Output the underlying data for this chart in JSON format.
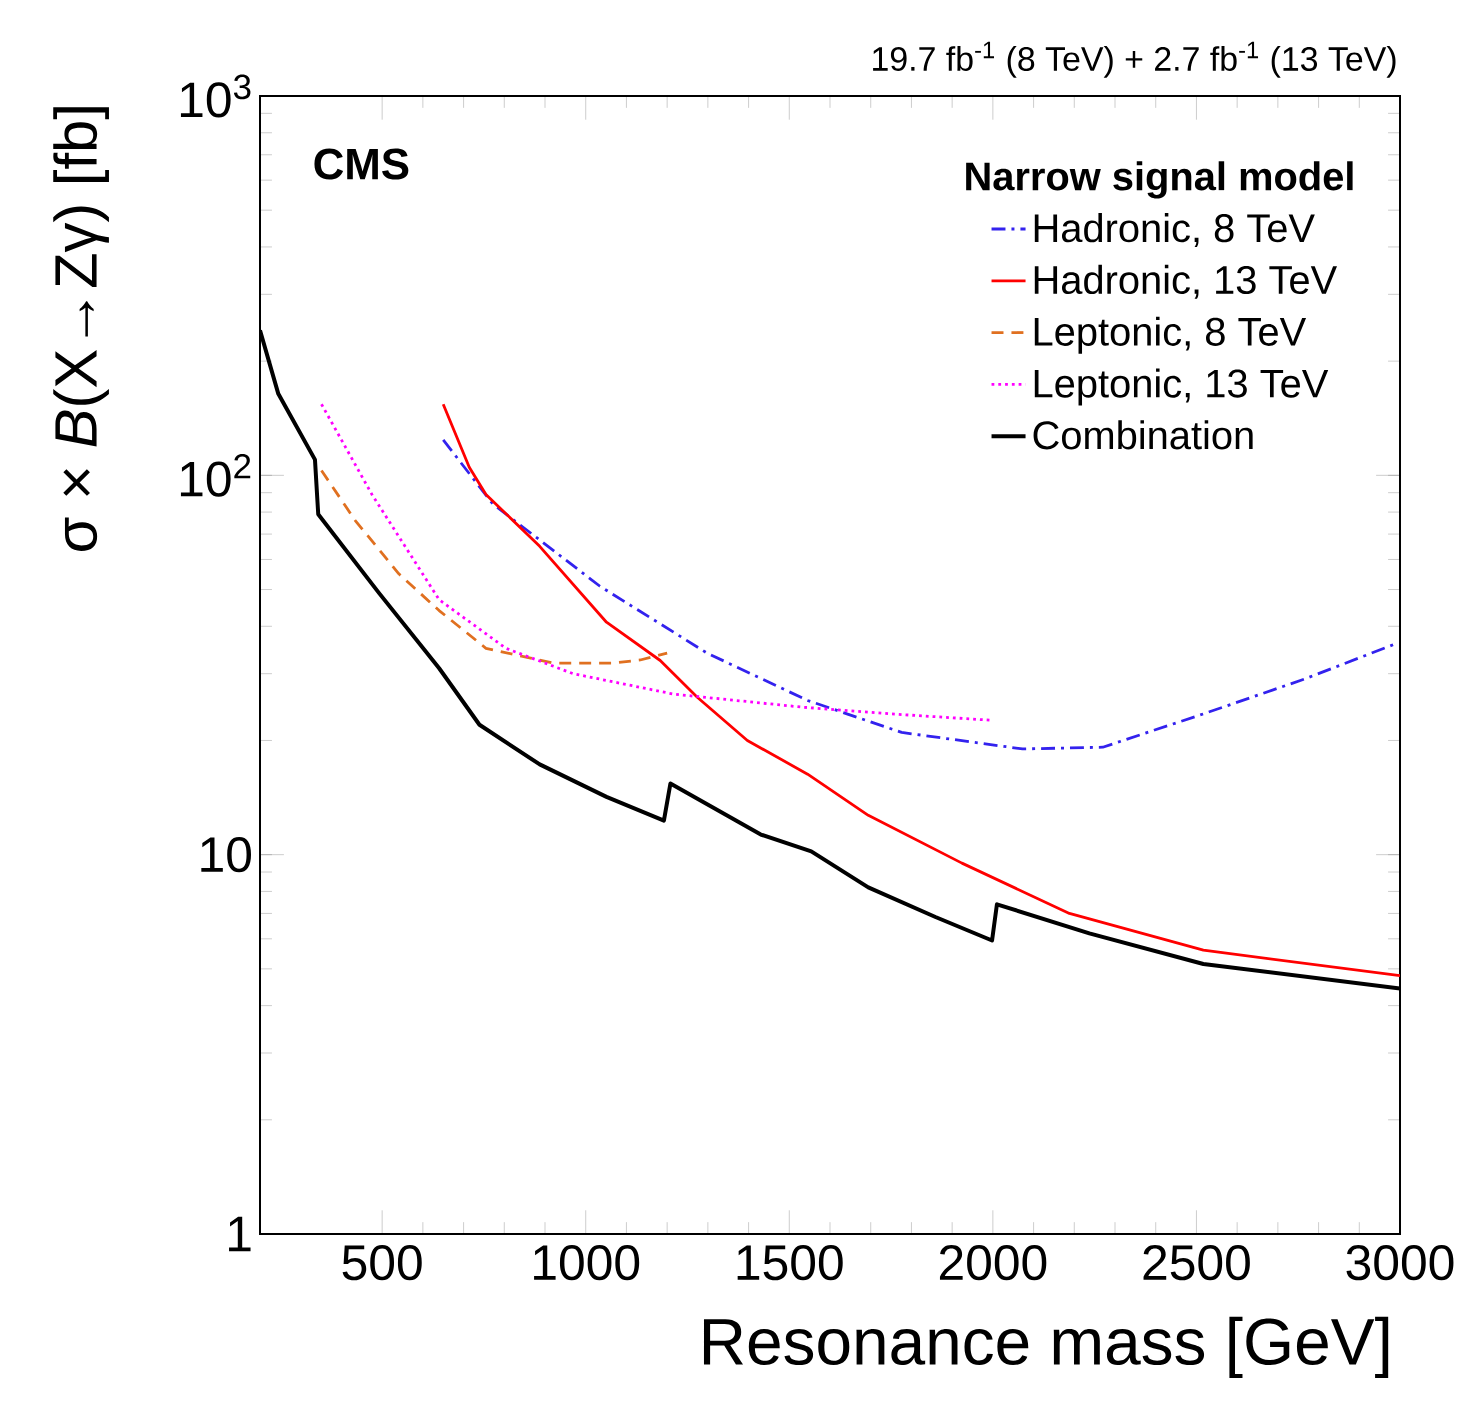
{
  "chart_data": {
    "type": "line",
    "title": "19.7 fb$^{-1}$ (8 TeV) + 2.7 fb$^{-1}$ (13 TeV)",
    "xlabel": "Resonance mass [GeV]",
    "ylabel": "σ × *B*(X→Zγ) [fb]",
    "legend_title": "Narrow signal model",
    "annotations": [
      "CMS"
    ],
    "xlim": [
      200,
      3000
    ],
    "xticks": [
      500,
      1000,
      1500,
      2000,
      2500,
      3000
    ],
    "ylim": [
      1,
      1000
    ],
    "yticks": [
      1,
      10,
      {
        "value": 100,
        "label": "10$^{2}$"
      },
      {
        "value": 1000,
        "label": "10$^{3}$"
      }
    ],
    "log": "y",
    "grid": false,
    "legend": "top right",
    "series": [
      {
        "name": "Hadronic, 8 TeV",
        "color": "#3322ee",
        "line_style": "dashdot",
        "x": [
          650,
          772,
          1035,
          1298,
          1545,
          1776,
          2073,
          2270,
          2517,
          2764,
          2990
        ],
        "values": [
          124,
          84,
          51,
          34,
          25.5,
          21,
          19,
          19.2,
          23.5,
          29,
          36
        ]
      },
      {
        "name": "Hadronic, 13 TeV",
        "color": "#ff0000",
        "line_style": "solid",
        "x": [
          650,
          714,
          755,
          887,
          1051,
          1183,
          1274,
          1397,
          1545,
          1694,
          1924,
          2188,
          2517,
          3000
        ],
        "values": [
          154,
          105,
          89,
          65,
          41,
          32.5,
          26,
          20,
          16.3,
          12.7,
          9.5,
          7,
          5.6,
          4.8
        ]
      },
      {
        "name": "Leptonic, 8 TeV",
        "color": "#e07020",
        "line_style": "dashed",
        "x": [
          351,
          434,
          541,
          640,
          755,
          920,
          1068,
          1134,
          1200
        ],
        "values": [
          103,
          76,
          55,
          44,
          35,
          32,
          32,
          32.6,
          34
        ]
      },
      {
        "name": "Leptonic, 13 TeV",
        "color": "#ff00ff",
        "line_style": "dotted",
        "x": [
          351,
          475,
          640,
          804,
          969,
          1216,
          1529,
          1750,
          2000
        ],
        "values": [
          154,
          89,
          47,
          35,
          30,
          26.5,
          24.5,
          23.5,
          22.6
        ]
      },
      {
        "name": "Combination",
        "color": "#000000",
        "line_style": "solid",
        "x": [
          200,
          245,
          335,
          343,
          492,
          640,
          739,
          887,
          1051,
          1192,
          1208,
          1430,
          1554,
          1694,
          1859,
          1998,
          2010,
          2237,
          2517,
          3000
        ],
        "values": [
          241,
          164,
          110,
          79,
          49,
          31,
          22,
          17.3,
          14.2,
          12.3,
          15.4,
          11.3,
          10.2,
          8.2,
          6.85,
          5.94,
          7.4,
          6.2,
          5.15,
          4.44
        ]
      }
    ]
  }
}
